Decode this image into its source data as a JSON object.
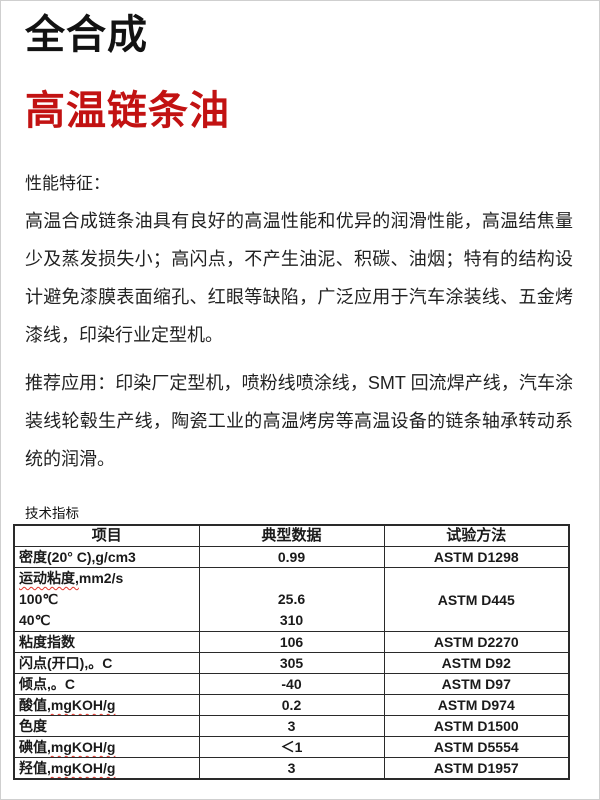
{
  "colors": {
    "accent_red": "#c21212",
    "squiggle_red": "#e0352b"
  },
  "doc": {
    "title_line1": "全合成",
    "title_line2": "高温链条油",
    "features_heading": "性能特征：",
    "features_text": "高温合成链条油具有良好的高温性能和优异的润滑性能，高温结焦量少及蒸发损失小；高闪点，不产生油泥、积碳、油烟；特有的结构设计避免漆膜表面缩孔、红眼等缺陷，广泛应用于汽车涂装线、五金烤漆线，印染行业定型机。",
    "applications_text": "推荐应用：印染厂定型机，喷粉线喷涂线，SMT 回流焊产线，汽车涂装线轮毂生产线，陶瓷工业的高温烤房等高温设备的链条轴承转动系统的润滑。",
    "table_caption": "技术指标"
  },
  "table": {
    "headers": [
      "项目",
      "典型数据",
      "试验方法"
    ],
    "rows": [
      {
        "item": "密度(20° C),g/cm3",
        "value": "0.99",
        "method": "ASTM D1298"
      },
      {
        "line1_squiggle": "运动粘度,",
        "line1_rest": "mm2/s",
        "line2": "100℃",
        "line3": "40℃",
        "value_line2": "25.6",
        "value_line3": "310",
        "method": "ASTM D445"
      },
      {
        "item": "粘度指数",
        "value": "106",
        "method": "ASTM D2270"
      },
      {
        "item": "闪点(开口),。C",
        "value": "305",
        "method": "ASTM D92"
      },
      {
        "item": "倾点,。C",
        "value": "-40",
        "method": "ASTM D97"
      },
      {
        "item_prefix": "酸值",
        "item_squiggle": ",mgKOH/g",
        "value": "0.2",
        "method": "ASTM D974"
      },
      {
        "item": "色度",
        "value": "3",
        "method": "ASTM D1500"
      },
      {
        "item_prefix": "碘值",
        "item_squiggle": ",mgKOH/g",
        "value": "＜1",
        "method": "ASTM D5554"
      },
      {
        "item_prefix": "羟值",
        "item_squiggle": ",mgKOH/g",
        "value": "3",
        "method": "ASTM D1957"
      }
    ]
  }
}
